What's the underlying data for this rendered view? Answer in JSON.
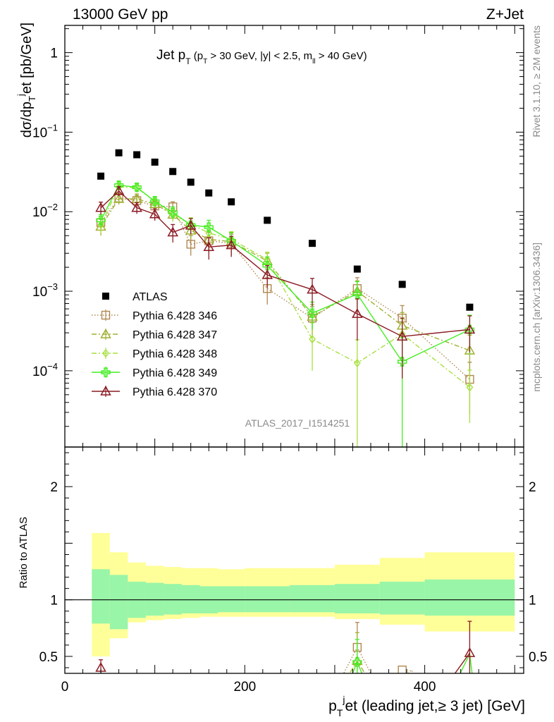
{
  "header": {
    "energy": "13000 GeV pp",
    "process": "Z+Jet"
  },
  "title": {
    "main": "Jet p",
    "main_sub": "T",
    "cuts_a": " (p",
    "cuts_a_sub": "T",
    "cuts_b": " > 30 GeV, |y| < 2.5, m",
    "cuts_b_sub": "ll",
    "cuts_c": " > 40 GeV)"
  },
  "side": {
    "rivet": "Rivet 3.1.10, ≥ 2M events",
    "source": "mcplots.cern.ch [arXiv:1306.3436]"
  },
  "analysis_tag": "ATLAS_2017_I1514251",
  "ylabel_top": {
    "a": "dσ/dp",
    "a_sub": "T",
    "a_sup": "j",
    "b": "et [pb/GeV]"
  },
  "ylabel_bottom": "Ratio to ATLAS",
  "xlabel": {
    "a": "p",
    "a_sub": "T",
    "a_sup": "j",
    "b": "et (leading jet,≥ 3 jet) [GeV]"
  },
  "top_yticks": [
    {
      "value": 1,
      "label": "1"
    },
    {
      "value": 0.1,
      "label": "10",
      "exp": "−1"
    },
    {
      "value": 0.01,
      "label": "10",
      "exp": "−2"
    },
    {
      "value": 0.001,
      "label": "10",
      "exp": "−3"
    },
    {
      "value": 0.0001,
      "label": "10",
      "exp": "−4"
    }
  ],
  "bottom_yticks": [
    {
      "value": 2,
      "label": "2"
    },
    {
      "value": 1,
      "label": "1"
    },
    {
      "value": 0.5,
      "label": "0.5"
    }
  ],
  "xticks": [
    {
      "value": 0,
      "label": "0"
    },
    {
      "value": 200,
      "label": "200"
    },
    {
      "value": 400,
      "label": "400"
    }
  ],
  "chart_data": {
    "type": "scatter",
    "x_range": [
      0,
      510
    ],
    "top_ylim": [
      1.1e-05,
      2.2
    ],
    "top_log": true,
    "bottom_ylim": [
      0.35,
      2.35
    ],
    "x": [
      40,
      60,
      80,
      100,
      120,
      140,
      160,
      185,
      225,
      275,
      325,
      375,
      450
    ],
    "bin_edges": [
      30,
      50,
      70,
      90,
      110,
      130,
      150,
      170,
      200,
      250,
      300,
      350,
      400,
      500
    ],
    "series": [
      {
        "name": "ATLAS",
        "color": "#000000",
        "marker": "filled-square",
        "dash": "",
        "values": [
          0.028,
          0.055,
          0.052,
          0.042,
          0.032,
          0.0235,
          0.0172,
          0.0133,
          0.0078,
          0.004,
          0.0019,
          0.00122,
          0.00063
        ]
      },
      {
        "name": "Pythia 6.428 346",
        "color": "#b08850",
        "marker": "open-square",
        "dash": "1.5,2.5",
        "values": [
          0.0073,
          0.0148,
          0.0138,
          0.0118,
          0.0115,
          0.0039,
          0.0043,
          0.004,
          0.00108,
          0.00046,
          0.00108,
          0.00046,
          7.8e-05
        ],
        "errors": [
          0.0015,
          0.0022,
          0.0022,
          0.0018,
          0.0018,
          0.0011,
          0.0012,
          0.0012,
          0.0004,
          0.00018,
          0.0004,
          0.0002,
          5e-05
        ]
      },
      {
        "name": "Pythia 6.428 347",
        "color": "#a0b030",
        "marker": "open-triangle",
        "dash": "7,3,2,3",
        "values": [
          0.0065,
          0.0145,
          0.0145,
          0.0125,
          0.0092,
          0.0058,
          0.0045,
          0.0042,
          0.0024,
          0.00048,
          0.001,
          0.00037,
          0.00018
        ],
        "errors": [
          0.0015,
          0.0022,
          0.0022,
          0.002,
          0.0017,
          0.0013,
          0.0012,
          0.0012,
          0.0006,
          0.0002,
          0.00035,
          0.00017,
          0.0001
        ]
      },
      {
        "name": "Pythia 6.428 348",
        "color": "#a8e040",
        "marker": "open-diamond",
        "dash": "7,3,2,3",
        "values": [
          0.0068,
          0.0205,
          0.02,
          0.0135,
          0.0092,
          0.007,
          0.0054,
          0.0045,
          0.0025,
          0.00025,
          0.000125,
          0.00029,
          6.2e-05
        ],
        "errors": [
          0.0015,
          0.0025,
          0.0025,
          0.002,
          0.0016,
          0.0014,
          0.0012,
          0.0011,
          0.0006,
          0.00015,
          0.00012,
          0.00016,
          4e-05
        ]
      },
      {
        "name": "Pythia 6.428 349",
        "color": "#44ee22",
        "marker": "open-cross",
        "dash": "",
        "values": [
          0.0078,
          0.0215,
          0.0203,
          0.0135,
          0.0098,
          0.0068,
          0.0064,
          0.0043,
          0.0021,
          0.00053,
          0.00092,
          0.00013,
          0.00033
        ],
        "errors": [
          0.0014,
          0.0025,
          0.0025,
          0.002,
          0.0017,
          0.0014,
          0.0014,
          0.0012,
          0.0006,
          0.0002,
          0.0004,
          0.00013,
          0.00017
        ]
      },
      {
        "name": "Pythia 6.428 370",
        "color": "#8b1a22",
        "marker": "open-triangle",
        "dash": "",
        "values": [
          0.0112,
          0.0182,
          0.0112,
          0.0093,
          0.0055,
          0.0067,
          0.0036,
          0.0038,
          0.0016,
          0.00105,
          0.00052,
          0.00027,
          0.00033
        ],
        "errors": [
          0.002,
          0.0025,
          0.0018,
          0.0016,
          0.0014,
          0.0015,
          0.0011,
          0.0011,
          0.0005,
          0.0004,
          0.00028,
          0.00019,
          0.00016
        ]
      }
    ],
    "ratio_series": [
      {
        "name": "Pythia 6.428 346",
        "color": "#b08850",
        "marker": "open-square",
        "dash": "1.5,2.5",
        "points": [
          {
            "x": 325,
            "y": 0.58,
            "err": 0.22
          },
          {
            "x": 375,
            "y": 0.38,
            "err": 0
          }
        ],
        "segments": [
          [
            [
              300,
              0.2
            ],
            [
              325,
              0.58
            ],
            [
              350,
              0.2
            ]
          ],
          [
            [
              365,
              0.2
            ],
            [
              385,
              0.38
            ],
            [
              400,
              0.2
            ]
          ]
        ]
      },
      {
        "name": "Pythia 6.428 347",
        "color": "#a0b030",
        "marker": "open-triangle",
        "dash": "7,3,2,3",
        "points": [
          {
            "x": 325,
            "y": 0.46,
            "err": 0.25
          }
        ],
        "segments": [
          [
            [
              305,
              0.2
            ],
            [
              325,
              0.46
            ],
            [
              345,
              0.2
            ]
          ]
        ]
      },
      {
        "name": "Pythia 6.428 348",
        "color": "#a8e040",
        "marker": "open-diamond",
        "dash": "7,3,2,3",
        "points": [],
        "segments": [
          [
            [
              310,
              0.2
            ],
            [
              325,
              0.3
            ],
            [
              340,
              0.2
            ]
          ]
        ]
      },
      {
        "name": "Pythia 6.428 349",
        "color": "#44ee22",
        "marker": "open-cross",
        "dash": "",
        "points": [
          {
            "x": 325,
            "y": 0.45,
            "err": 0.2
          }
        ],
        "segments": [
          [
            [
              312,
              0.2
            ],
            [
              325,
              0.45
            ],
            [
              338,
              0.2
            ]
          ],
          [
            [
              430,
              0.2
            ],
            [
              450,
              0.52
            ],
            [
              455,
              0.2
            ]
          ]
        ]
      },
      {
        "name": "Pythia 6.428 370",
        "color": "#8b1a22",
        "marker": "open-triangle",
        "dash": "",
        "points": [
          {
            "x": 40,
            "y": 0.4,
            "err": 0.07
          },
          {
            "x": 450,
            "y": 0.53,
            "err": 0.28
          }
        ],
        "segments": [
          [
            [
              420,
              0.2
            ],
            [
              450,
              0.53
            ]
          ]
        ]
      }
    ],
    "band_edges": [
      30,
      50,
      70,
      90,
      110,
      130,
      150,
      170,
      200,
      250,
      300,
      350,
      400,
      500
    ],
    "band_green": [
      [
        0.79,
        1.27
      ],
      [
        0.74,
        1.22
      ],
      [
        0.84,
        1.16
      ],
      [
        0.86,
        1.15
      ],
      [
        0.87,
        1.14
      ],
      [
        0.88,
        1.13
      ],
      [
        0.88,
        1.12
      ],
      [
        0.89,
        1.12
      ],
      [
        0.89,
        1.12
      ],
      [
        0.89,
        1.13
      ],
      [
        0.88,
        1.14
      ],
      [
        0.87,
        1.16
      ],
      [
        0.86,
        1.18
      ]
    ],
    "band_yellow": [
      [
        0.5,
        1.59
      ],
      [
        0.66,
        1.42
      ],
      [
        0.8,
        1.33
      ],
      [
        0.82,
        1.3
      ],
      [
        0.83,
        1.29
      ],
      [
        0.84,
        1.28
      ],
      [
        0.85,
        1.28
      ],
      [
        0.85,
        1.27
      ],
      [
        0.85,
        1.28
      ],
      [
        0.85,
        1.28
      ],
      [
        0.83,
        1.31
      ],
      [
        0.78,
        1.37
      ],
      [
        0.72,
        1.42
      ]
    ]
  }
}
